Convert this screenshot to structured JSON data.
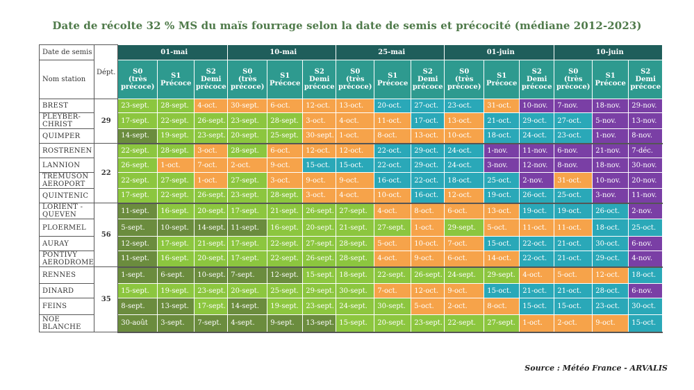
{
  "title": "Date de récolte 32 % MS du maïs fourrage selon la date de semis et précocité (médiane 2012-2023)",
  "source": "Source : Météo France - ARVALIS",
  "header": {
    "date_semis_label": "Date de semis",
    "station_label": "Nom station",
    "dept_label": "Dépt.",
    "sowing_dates": [
      "01-mai",
      "10-mai",
      "25-mai",
      "01-juin",
      "10-juin"
    ],
    "stages": [
      {
        "code": "S0",
        "desc": "(très précoce)"
      },
      {
        "code": "S1",
        "desc": "Précoce"
      },
      {
        "code": "S2",
        "desc": "Demi précoce"
      }
    ]
  },
  "colors": {
    "dark_green": "#6b8c3e",
    "light_green": "#8cc63f",
    "orange": "#f6a34a",
    "teal": "#2aa8b8",
    "purple": "#7a3fa5",
    "header_dark": "#1f5e5b",
    "header_teal": "#2e9a8f"
  },
  "rows": [
    {
      "station": "BREST",
      "cells": [
        [
          "23-sept.",
          "lg"
        ],
        [
          "28-sept.",
          "lg"
        ],
        [
          "4-oct.",
          "or"
        ],
        [
          "30-sept.",
          "or"
        ],
        [
          "6-oct.",
          "or"
        ],
        [
          "12-oct.",
          "or"
        ],
        [
          "13-oct.",
          "or"
        ],
        [
          "20-oct.",
          "tl"
        ],
        [
          "27-oct.",
          "tl"
        ],
        [
          "23-oct.",
          "tl"
        ],
        [
          "31-oct.",
          "or"
        ],
        [
          "10-nov.",
          "pu"
        ],
        [
          "7-nov.",
          "pu"
        ],
        [
          "18-nov.",
          "pu"
        ],
        [
          "29-nov.",
          "pu"
        ]
      ]
    },
    {
      "station": "PLEYBER-CHRIST",
      "cells": [
        [
          "17-sept.",
          "lg"
        ],
        [
          "22-sept.",
          "lg"
        ],
        [
          "26-sept.",
          "lg"
        ],
        [
          "23-sept.",
          "lg"
        ],
        [
          "28-sept.",
          "lg"
        ],
        [
          "3-oct.",
          "or"
        ],
        [
          "4-oct.",
          "or"
        ],
        [
          "11-oct.",
          "or"
        ],
        [
          "17-oct.",
          "tl"
        ],
        [
          "13-oct.",
          "or"
        ],
        [
          "21-oct.",
          "tl"
        ],
        [
          "29-oct.",
          "tl"
        ],
        [
          "27-oct.",
          "tl"
        ],
        [
          "5-nov.",
          "pu"
        ],
        [
          "13-nov.",
          "pu"
        ]
      ]
    },
    {
      "station": "QUIMPER",
      "cells": [
        [
          "14-sept.",
          "dg"
        ],
        [
          "19-sept.",
          "lg"
        ],
        [
          "23-sept.",
          "lg"
        ],
        [
          "20-sept.",
          "lg"
        ],
        [
          "25-sept.",
          "lg"
        ],
        [
          "30-sept.",
          "or"
        ],
        [
          "1-oct.",
          "or"
        ],
        [
          "8-oct.",
          "or"
        ],
        [
          "13-oct.",
          "or"
        ],
        [
          "10-oct.",
          "or"
        ],
        [
          "18-oct.",
          "tl"
        ],
        [
          "24-oct.",
          "tl"
        ],
        [
          "23-oct.",
          "tl"
        ],
        [
          "1-nov.",
          "pu"
        ],
        [
          "8-nov.",
          "pu"
        ]
      ]
    },
    {
      "station": "ROSTRENEN",
      "cells": [
        [
          "22-sept.",
          "lg"
        ],
        [
          "28-sept.",
          "lg"
        ],
        [
          "3-oct.",
          "or"
        ],
        [
          "28-sept.",
          "lg"
        ],
        [
          "6-oct.",
          "or"
        ],
        [
          "12-oct.",
          "or"
        ],
        [
          "12-oct.",
          "or"
        ],
        [
          "22-oct.",
          "tl"
        ],
        [
          "29-oct.",
          "tl"
        ],
        [
          "24-oct.",
          "tl"
        ],
        [
          "1-nov.",
          "pu"
        ],
        [
          "11-nov.",
          "pu"
        ],
        [
          "6-nov.",
          "pu"
        ],
        [
          "21-nov.",
          "pu"
        ],
        [
          "7-déc.",
          "pu"
        ]
      ]
    },
    {
      "station": "LANNION",
      "cells": [
        [
          "26-sept.",
          "lg"
        ],
        [
          "1-oct.",
          "or"
        ],
        [
          "7-oct.",
          "or"
        ],
        [
          "2-oct.",
          "or"
        ],
        [
          "9-oct.",
          "or"
        ],
        [
          "15-oct.",
          "tl"
        ],
        [
          "15-oct.",
          "tl"
        ],
        [
          "22-oct.",
          "tl"
        ],
        [
          "29-oct.",
          "tl"
        ],
        [
          "24-oct.",
          "tl"
        ],
        [
          "3-nov.",
          "pu"
        ],
        [
          "12-nov.",
          "pu"
        ],
        [
          "8-nov.",
          "pu"
        ],
        [
          "18-nov.",
          "pu"
        ],
        [
          "30-nov.",
          "pu"
        ]
      ]
    },
    {
      "station": "TREMUSON AEROPORT",
      "cells": [
        [
          "22-sept.",
          "lg"
        ],
        [
          "27-sept.",
          "lg"
        ],
        [
          "1-oct.",
          "or"
        ],
        [
          "27-sept.",
          "lg"
        ],
        [
          "3-oct.",
          "or"
        ],
        [
          "9-oct.",
          "or"
        ],
        [
          "9-oct.",
          "or"
        ],
        [
          "16-oct.",
          "tl"
        ],
        [
          "22-oct.",
          "tl"
        ],
        [
          "18-oct.",
          "tl"
        ],
        [
          "25-oct.",
          "tl"
        ],
        [
          "2-nov.",
          "pu"
        ],
        [
          "31-oct.",
          "or"
        ],
        [
          "10-nov.",
          "pu"
        ],
        [
          "20-nov.",
          "pu"
        ]
      ]
    },
    {
      "station": "QUINTENIC",
      "cells": [
        [
          "17-sept.",
          "lg"
        ],
        [
          "22-sept.",
          "lg"
        ],
        [
          "26-sept.",
          "lg"
        ],
        [
          "23-sept.",
          "lg"
        ],
        [
          "28-sept.",
          "lg"
        ],
        [
          "3-oct.",
          "or"
        ],
        [
          "4-oct.",
          "or"
        ],
        [
          "10-oct.",
          "or"
        ],
        [
          "16-oct.",
          "tl"
        ],
        [
          "12-oct.",
          "or"
        ],
        [
          "19-oct.",
          "tl"
        ],
        [
          "26-oct.",
          "tl"
        ],
        [
          "25-oct.",
          "tl"
        ],
        [
          "3-nov.",
          "pu"
        ],
        [
          "11-nov.",
          "pu"
        ]
      ]
    },
    {
      "station": "LORIENT - QUEVEN",
      "cells": [
        [
          "11-sept.",
          "dg"
        ],
        [
          "16-sept.",
          "lg"
        ],
        [
          "20-sept.",
          "lg"
        ],
        [
          "17-sept.",
          "lg"
        ],
        [
          "21-sept.",
          "lg"
        ],
        [
          "26-sept.",
          "lg"
        ],
        [
          "27-sept.",
          "lg"
        ],
        [
          "4-oct.",
          "or"
        ],
        [
          "8-oct.",
          "or"
        ],
        [
          "6-oct.",
          "or"
        ],
        [
          "13-oct.",
          "or"
        ],
        [
          "19-oct.",
          "tl"
        ],
        [
          "19-oct.",
          "tl"
        ],
        [
          "26-oct.",
          "tl"
        ],
        [
          "2-nov.",
          "pu"
        ]
      ]
    },
    {
      "station": "PLOERMEL",
      "cells": [
        [
          "5-sept.",
          "dg"
        ],
        [
          "10-sept.",
          "dg"
        ],
        [
          "14-sept.",
          "dg"
        ],
        [
          "11-sept.",
          "dg"
        ],
        [
          "16-sept.",
          "lg"
        ],
        [
          "20-sept.",
          "lg"
        ],
        [
          "21-sept.",
          "lg"
        ],
        [
          "27-sept.",
          "lg"
        ],
        [
          "1-oct.",
          "or"
        ],
        [
          "29-sept.",
          "lg"
        ],
        [
          "5-oct.",
          "or"
        ],
        [
          "11-oct.",
          "or"
        ],
        [
          "11-oct.",
          "or"
        ],
        [
          "18-oct.",
          "tl"
        ],
        [
          "25-oct.",
          "tl"
        ]
      ]
    },
    {
      "station": "AURAY",
      "cells": [
        [
          "12-sept.",
          "dg"
        ],
        [
          "17-sept.",
          "lg"
        ],
        [
          "21-sept.",
          "lg"
        ],
        [
          "17-sept.",
          "lg"
        ],
        [
          "22-sept.",
          "lg"
        ],
        [
          "27-sept.",
          "lg"
        ],
        [
          "28-sept.",
          "lg"
        ],
        [
          "5-oct.",
          "or"
        ],
        [
          "10-oct.",
          "or"
        ],
        [
          "7-oct.",
          "or"
        ],
        [
          "15-oct.",
          "tl"
        ],
        [
          "22-oct.",
          "tl"
        ],
        [
          "21-oct.",
          "tl"
        ],
        [
          "30-oct.",
          "tl"
        ],
        [
          "6-nov.",
          "pu"
        ]
      ]
    },
    {
      "station": "PONTIVY AERODROME",
      "cells": [
        [
          "11-sept.",
          "dg"
        ],
        [
          "16-sept.",
          "lg"
        ],
        [
          "20-sept.",
          "lg"
        ],
        [
          "17-sept.",
          "lg"
        ],
        [
          "22-sept.",
          "lg"
        ],
        [
          "26-sept.",
          "lg"
        ],
        [
          "28-sept.",
          "lg"
        ],
        [
          "4-oct.",
          "or"
        ],
        [
          "9-oct.",
          "or"
        ],
        [
          "6-oct.",
          "or"
        ],
        [
          "14-oct.",
          "or"
        ],
        [
          "22-oct.",
          "tl"
        ],
        [
          "21-oct.",
          "tl"
        ],
        [
          "29-oct.",
          "tl"
        ],
        [
          "4-nov.",
          "pu"
        ]
      ]
    },
    {
      "station": "RENNES",
      "cells": [
        [
          "1-sept.",
          "dg"
        ],
        [
          "6-sept.",
          "dg"
        ],
        [
          "10-sept.",
          "dg"
        ],
        [
          "7-sept.",
          "dg"
        ],
        [
          "12-sept.",
          "dg"
        ],
        [
          "15-sept.",
          "lg"
        ],
        [
          "18-sept.",
          "lg"
        ],
        [
          "22-sept.",
          "lg"
        ],
        [
          "26-sept.",
          "lg"
        ],
        [
          "24-sept.",
          "lg"
        ],
        [
          "29-sept.",
          "lg"
        ],
        [
          "4-oct.",
          "or"
        ],
        [
          "5-oct.",
          "or"
        ],
        [
          "12-oct.",
          "or"
        ],
        [
          "18-oct.",
          "tl"
        ]
      ]
    },
    {
      "station": "DINARD",
      "cells": [
        [
          "15-sept.",
          "lg"
        ],
        [
          "19-sept.",
          "lg"
        ],
        [
          "23-sept.",
          "lg"
        ],
        [
          "20-sept.",
          "lg"
        ],
        [
          "25-sept.",
          "lg"
        ],
        [
          "29-sept.",
          "lg"
        ],
        [
          "30-sept.",
          "lg"
        ],
        [
          "7-oct.",
          "or"
        ],
        [
          "12-oct.",
          "or"
        ],
        [
          "9-oct.",
          "or"
        ],
        [
          "15-oct.",
          "tl"
        ],
        [
          "21-oct.",
          "tl"
        ],
        [
          "21-oct.",
          "tl"
        ],
        [
          "28-oct.",
          "tl"
        ],
        [
          "6-nov.",
          "pu"
        ]
      ]
    },
    {
      "station": "FEINS",
      "cells": [
        [
          "8-sept.",
          "dg"
        ],
        [
          "13-sept.",
          "dg"
        ],
        [
          "17-sept.",
          "lg"
        ],
        [
          "14-sept.",
          "dg"
        ],
        [
          "19-sept.",
          "lg"
        ],
        [
          "23-sept.",
          "lg"
        ],
        [
          "24-sept.",
          "lg"
        ],
        [
          "30-sept.",
          "lg"
        ],
        [
          "5-oct.",
          "or"
        ],
        [
          "2-oct.",
          "or"
        ],
        [
          "8-oct.",
          "or"
        ],
        [
          "15-oct.",
          "tl"
        ],
        [
          "15-oct.",
          "tl"
        ],
        [
          "23-oct.",
          "tl"
        ],
        [
          "30-oct.",
          "tl"
        ]
      ]
    },
    {
      "station": "NOE BLANCHE",
      "cells": [
        [
          "30-août",
          "dg"
        ],
        [
          "3-sept.",
          "dg"
        ],
        [
          "7-sept.",
          "dg"
        ],
        [
          "4-sept.",
          "dg"
        ],
        [
          "9-sept.",
          "dg"
        ],
        [
          "13-sept.",
          "dg"
        ],
        [
          "15-sept.",
          "lg"
        ],
        [
          "20-sept.",
          "lg"
        ],
        [
          "23-sept.",
          "lg"
        ],
        [
          "22-sept.",
          "lg"
        ],
        [
          "27-sept.",
          "lg"
        ],
        [
          "1-oct.",
          "or"
        ],
        [
          "2-oct.",
          "or"
        ],
        [
          "9-oct.",
          "or"
        ],
        [
          "15-oct.",
          "tl"
        ]
      ]
    }
  ],
  "departments": [
    {
      "code": "29",
      "rows": 3
    },
    {
      "code": "22",
      "rows": 4
    },
    {
      "code": "56",
      "rows": 4
    },
    {
      "code": "35",
      "rows": 4
    }
  ]
}
